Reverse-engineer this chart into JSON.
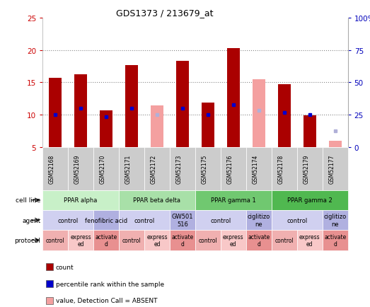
{
  "title": "GDS1373 / 213679_at",
  "samples": [
    "GSM52168",
    "GSM52169",
    "GSM52170",
    "GSM52171",
    "GSM52172",
    "GSM52173",
    "GSM52175",
    "GSM52176",
    "GSM52174",
    "GSM52178",
    "GSM52179",
    "GSM52177"
  ],
  "count_values": [
    15.7,
    16.3,
    10.7,
    17.7,
    null,
    18.3,
    11.9,
    20.3,
    null,
    14.7,
    9.9,
    null
  ],
  "rank_values": [
    10.0,
    11.0,
    9.7,
    11.0,
    null,
    11.0,
    10.0,
    11.6,
    null,
    10.3,
    10.0,
    null
  ],
  "absent_count": [
    null,
    null,
    null,
    null,
    11.4,
    null,
    null,
    null,
    15.5,
    null,
    null,
    6.0
  ],
  "absent_rank": [
    null,
    null,
    null,
    null,
    10.0,
    null,
    null,
    null,
    10.7,
    null,
    null,
    7.5
  ],
  "ylim": [
    5,
    25
  ],
  "yticks_left": [
    5,
    10,
    15,
    20,
    25
  ],
  "cell_line_groups": [
    {
      "label": "PPAR alpha",
      "start": 0,
      "end": 3,
      "color": "#c8f0c8"
    },
    {
      "label": "PPAR beta delta",
      "start": 3,
      "end": 6,
      "color": "#a8e0a8"
    },
    {
      "label": "PPAR gamma 1",
      "start": 6,
      "end": 9,
      "color": "#70c870"
    },
    {
      "label": "PPAR gamma 2",
      "start": 9,
      "end": 12,
      "color": "#50b850"
    }
  ],
  "agent_groups": [
    {
      "label": "control",
      "start": 0,
      "end": 2,
      "color": "#d0d0f0"
    },
    {
      "label": "fenofibric acid",
      "start": 2,
      "end": 3,
      "color": "#b0b0e0"
    },
    {
      "label": "control",
      "start": 3,
      "end": 5,
      "color": "#d0d0f0"
    },
    {
      "label": "GW501\n516",
      "start": 5,
      "end": 6,
      "color": "#b0b0e0"
    },
    {
      "label": "control",
      "start": 6,
      "end": 8,
      "color": "#d0d0f0"
    },
    {
      "label": "ciglitizo\nne",
      "start": 8,
      "end": 9,
      "color": "#b0b0e0"
    },
    {
      "label": "control",
      "start": 9,
      "end": 11,
      "color": "#d0d0f0"
    },
    {
      "label": "ciglitizo\nne",
      "start": 11,
      "end": 12,
      "color": "#b0b0e0"
    }
  ],
  "protocol_groups": [
    {
      "label": "control",
      "start": 0,
      "end": 1,
      "color": "#f0b0b0"
    },
    {
      "label": "express\ned",
      "start": 1,
      "end": 2,
      "color": "#f8c8c8"
    },
    {
      "label": "activate\nd",
      "start": 2,
      "end": 3,
      "color": "#e89090"
    },
    {
      "label": "control",
      "start": 3,
      "end": 4,
      "color": "#f0b0b0"
    },
    {
      "label": "express\ned",
      "start": 4,
      "end": 5,
      "color": "#f8c8c8"
    },
    {
      "label": "activate\nd",
      "start": 5,
      "end": 6,
      "color": "#e89090"
    },
    {
      "label": "control",
      "start": 6,
      "end": 7,
      "color": "#f0b0b0"
    },
    {
      "label": "express\ned",
      "start": 7,
      "end": 8,
      "color": "#f8c8c8"
    },
    {
      "label": "activate\nd",
      "start": 8,
      "end": 9,
      "color": "#e89090"
    },
    {
      "label": "control",
      "start": 9,
      "end": 10,
      "color": "#f0b0b0"
    },
    {
      "label": "express\ned",
      "start": 10,
      "end": 11,
      "color": "#f8c8c8"
    },
    {
      "label": "activate\nd",
      "start": 11,
      "end": 12,
      "color": "#e89090"
    }
  ],
  "bar_color_present": "#aa0000",
  "rank_color_present": "#0000cc",
  "bar_color_absent": "#f4a0a0",
  "rank_color_absent": "#b0b0d8",
  "sample_bg": "#cccccc",
  "bg_color": "#ffffff",
  "left_label_color": "#cc0000",
  "right_label_color": "#0000bb",
  "grid_color": "#888888",
  "legend_items": [
    {
      "color": "#aa0000",
      "label": "count"
    },
    {
      "color": "#0000cc",
      "label": "percentile rank within the sample"
    },
    {
      "color": "#f4a0a0",
      "label": "value, Detection Call = ABSENT"
    },
    {
      "color": "#b0b0d8",
      "label": "rank, Detection Call = ABSENT"
    }
  ]
}
